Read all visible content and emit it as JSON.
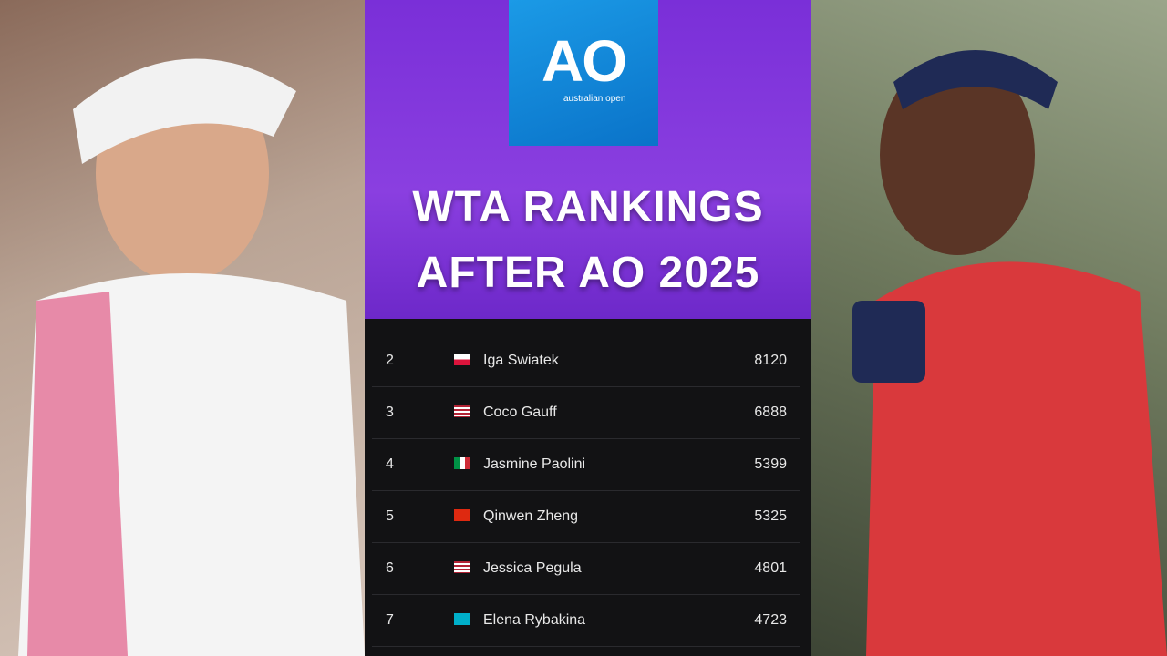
{
  "logo": {
    "mark": "AO",
    "text": "australian open"
  },
  "title": {
    "lines": [
      "WTA RANKINGS",
      "AFTER AO 2025"
    ]
  },
  "table": {
    "rows": [
      [
        2,
        "Iga Swiatek",
        8120
      ],
      [
        3,
        "Coco Gauff",
        6888
      ],
      [
        4,
        "Jasmine Paolini",
        5399
      ],
      [
        5,
        "Qinwen Zheng",
        5325
      ],
      [
        6,
        "Jessica Pegula",
        4801
      ],
      [
        7,
        "Elena Rybakina",
        4723
      ]
    ]
  }
}
